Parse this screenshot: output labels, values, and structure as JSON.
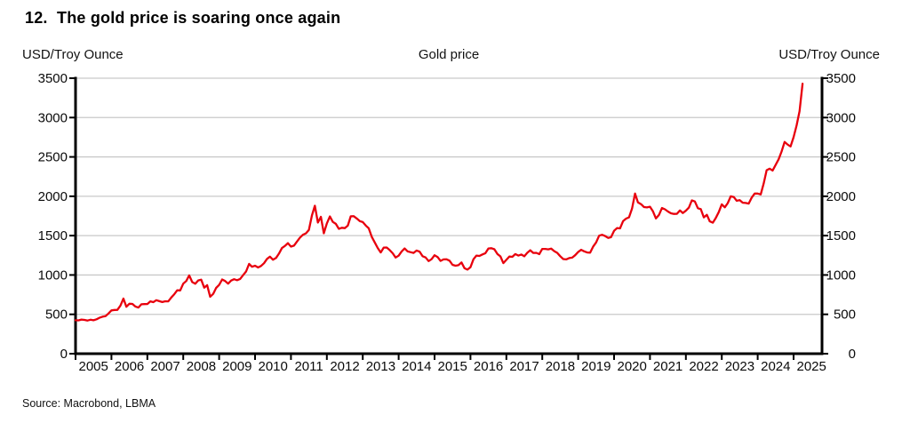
{
  "header": {
    "title": "12.  The gold price is soaring once again"
  },
  "chart": {
    "left_axis_title": "USD/Troy Ounce",
    "center_title": "Gold price",
    "right_axis_title": "USD/Troy Ounce",
    "source": "Source: Macrobond, LBMA"
  },
  "chart_data": {
    "type": "line",
    "title": "Gold price",
    "ylabel_left": "USD/Troy Ounce",
    "ylabel_right": "USD/Troy Ounce",
    "source": "Source: Macrobond, LBMA",
    "series_name": "Gold price",
    "line_color": "#e8000d",
    "grid": "horizontal",
    "grid_color": "#c9c9c9",
    "axis_color": "#000000",
    "legend": "none",
    "ylim": [
      0,
      3500
    ],
    "y_ticks": [
      0,
      500,
      1000,
      1500,
      2000,
      2500,
      3000,
      3500
    ],
    "x_tick_labels": [
      "2005",
      "2006",
      "2007",
      "2008",
      "2009",
      "2010",
      "2011",
      "2012",
      "2013",
      "2014",
      "2015",
      "2016",
      "2017",
      "2018",
      "2019",
      "2020",
      "2021",
      "2022",
      "2023",
      "2024",
      "2025"
    ],
    "x_start_year": 2005,
    "x_step_months": 1,
    "frequency": "monthly, Jan 2005 - Apr 2025",
    "values": [
      424,
      423,
      434,
      429,
      421,
      431,
      424,
      437,
      456,
      470,
      476,
      510,
      550,
      555,
      557,
      611,
      700,
      596,
      634,
      632,
      599,
      586,
      628,
      630,
      631,
      665,
      655,
      680,
      667,
      656,
      666,
      665,
      713,
      755,
      806,
      804,
      890,
      923,
      995,
      910,
      889,
      930,
      940,
      839,
      871,
      724,
      760,
      836,
      874,
      943,
      924,
      890,
      929,
      946,
      934,
      950,
      997,
      1044,
      1140,
      1104,
      1118,
      1095,
      1114,
      1149,
      1205,
      1233,
      1193,
      1216,
      1271,
      1342,
      1370,
      1405,
      1361,
      1373,
      1424,
      1474,
      1511,
      1529,
      1573,
      1756,
      1880,
      1666,
      1739,
      1530,
      1655,
      1743,
      1674,
      1650,
      1586,
      1600,
      1595,
      1627,
      1745,
      1747,
      1717,
      1685,
      1672,
      1628,
      1593,
      1486,
      1414,
      1343,
      1286,
      1348,
      1349,
      1316,
      1276,
      1222,
      1245,
      1300,
      1337,
      1299,
      1289,
      1280,
      1311,
      1296,
      1239,
      1223,
      1176,
      1200,
      1251,
      1228,
      1179,
      1198,
      1199,
      1182,
      1129,
      1118,
      1125,
      1159,
      1086,
      1068,
      1098,
      1200,
      1246,
      1242,
      1261,
      1277,
      1337,
      1340,
      1327,
      1267,
      1236,
      1151,
      1192,
      1234,
      1231,
      1266,
      1246,
      1260,
      1237,
      1283,
      1314,
      1280,
      1282,
      1264,
      1331,
      1331,
      1325,
      1334,
      1303,
      1282,
      1238,
      1202,
      1198,
      1215,
      1221,
      1251,
      1292,
      1320,
      1301,
      1286,
      1284,
      1359,
      1413,
      1499,
      1511,
      1495,
      1471,
      1480,
      1561,
      1597,
      1592,
      1683,
      1716,
      1732,
      1843,
      2035,
      1922,
      1900,
      1863,
      1858,
      1867,
      1808,
      1718,
      1762,
      1850,
      1835,
      1807,
      1784,
      1776,
      1777,
      1820,
      1787,
      1817,
      1856,
      1948,
      1934,
      1848,
      1836,
      1732,
      1765,
      1681,
      1664,
      1725,
      1798,
      1898,
      1860,
      1913,
      2000,
      1991,
      1943,
      1951,
      1918,
      1915,
      1907,
      1984,
      2034,
      2034,
      2023,
      2160,
      2331,
      2351,
      2327,
      2398,
      2470,
      2568,
      2690,
      2657,
      2633,
      2750,
      2900,
      3080,
      3430
    ]
  }
}
